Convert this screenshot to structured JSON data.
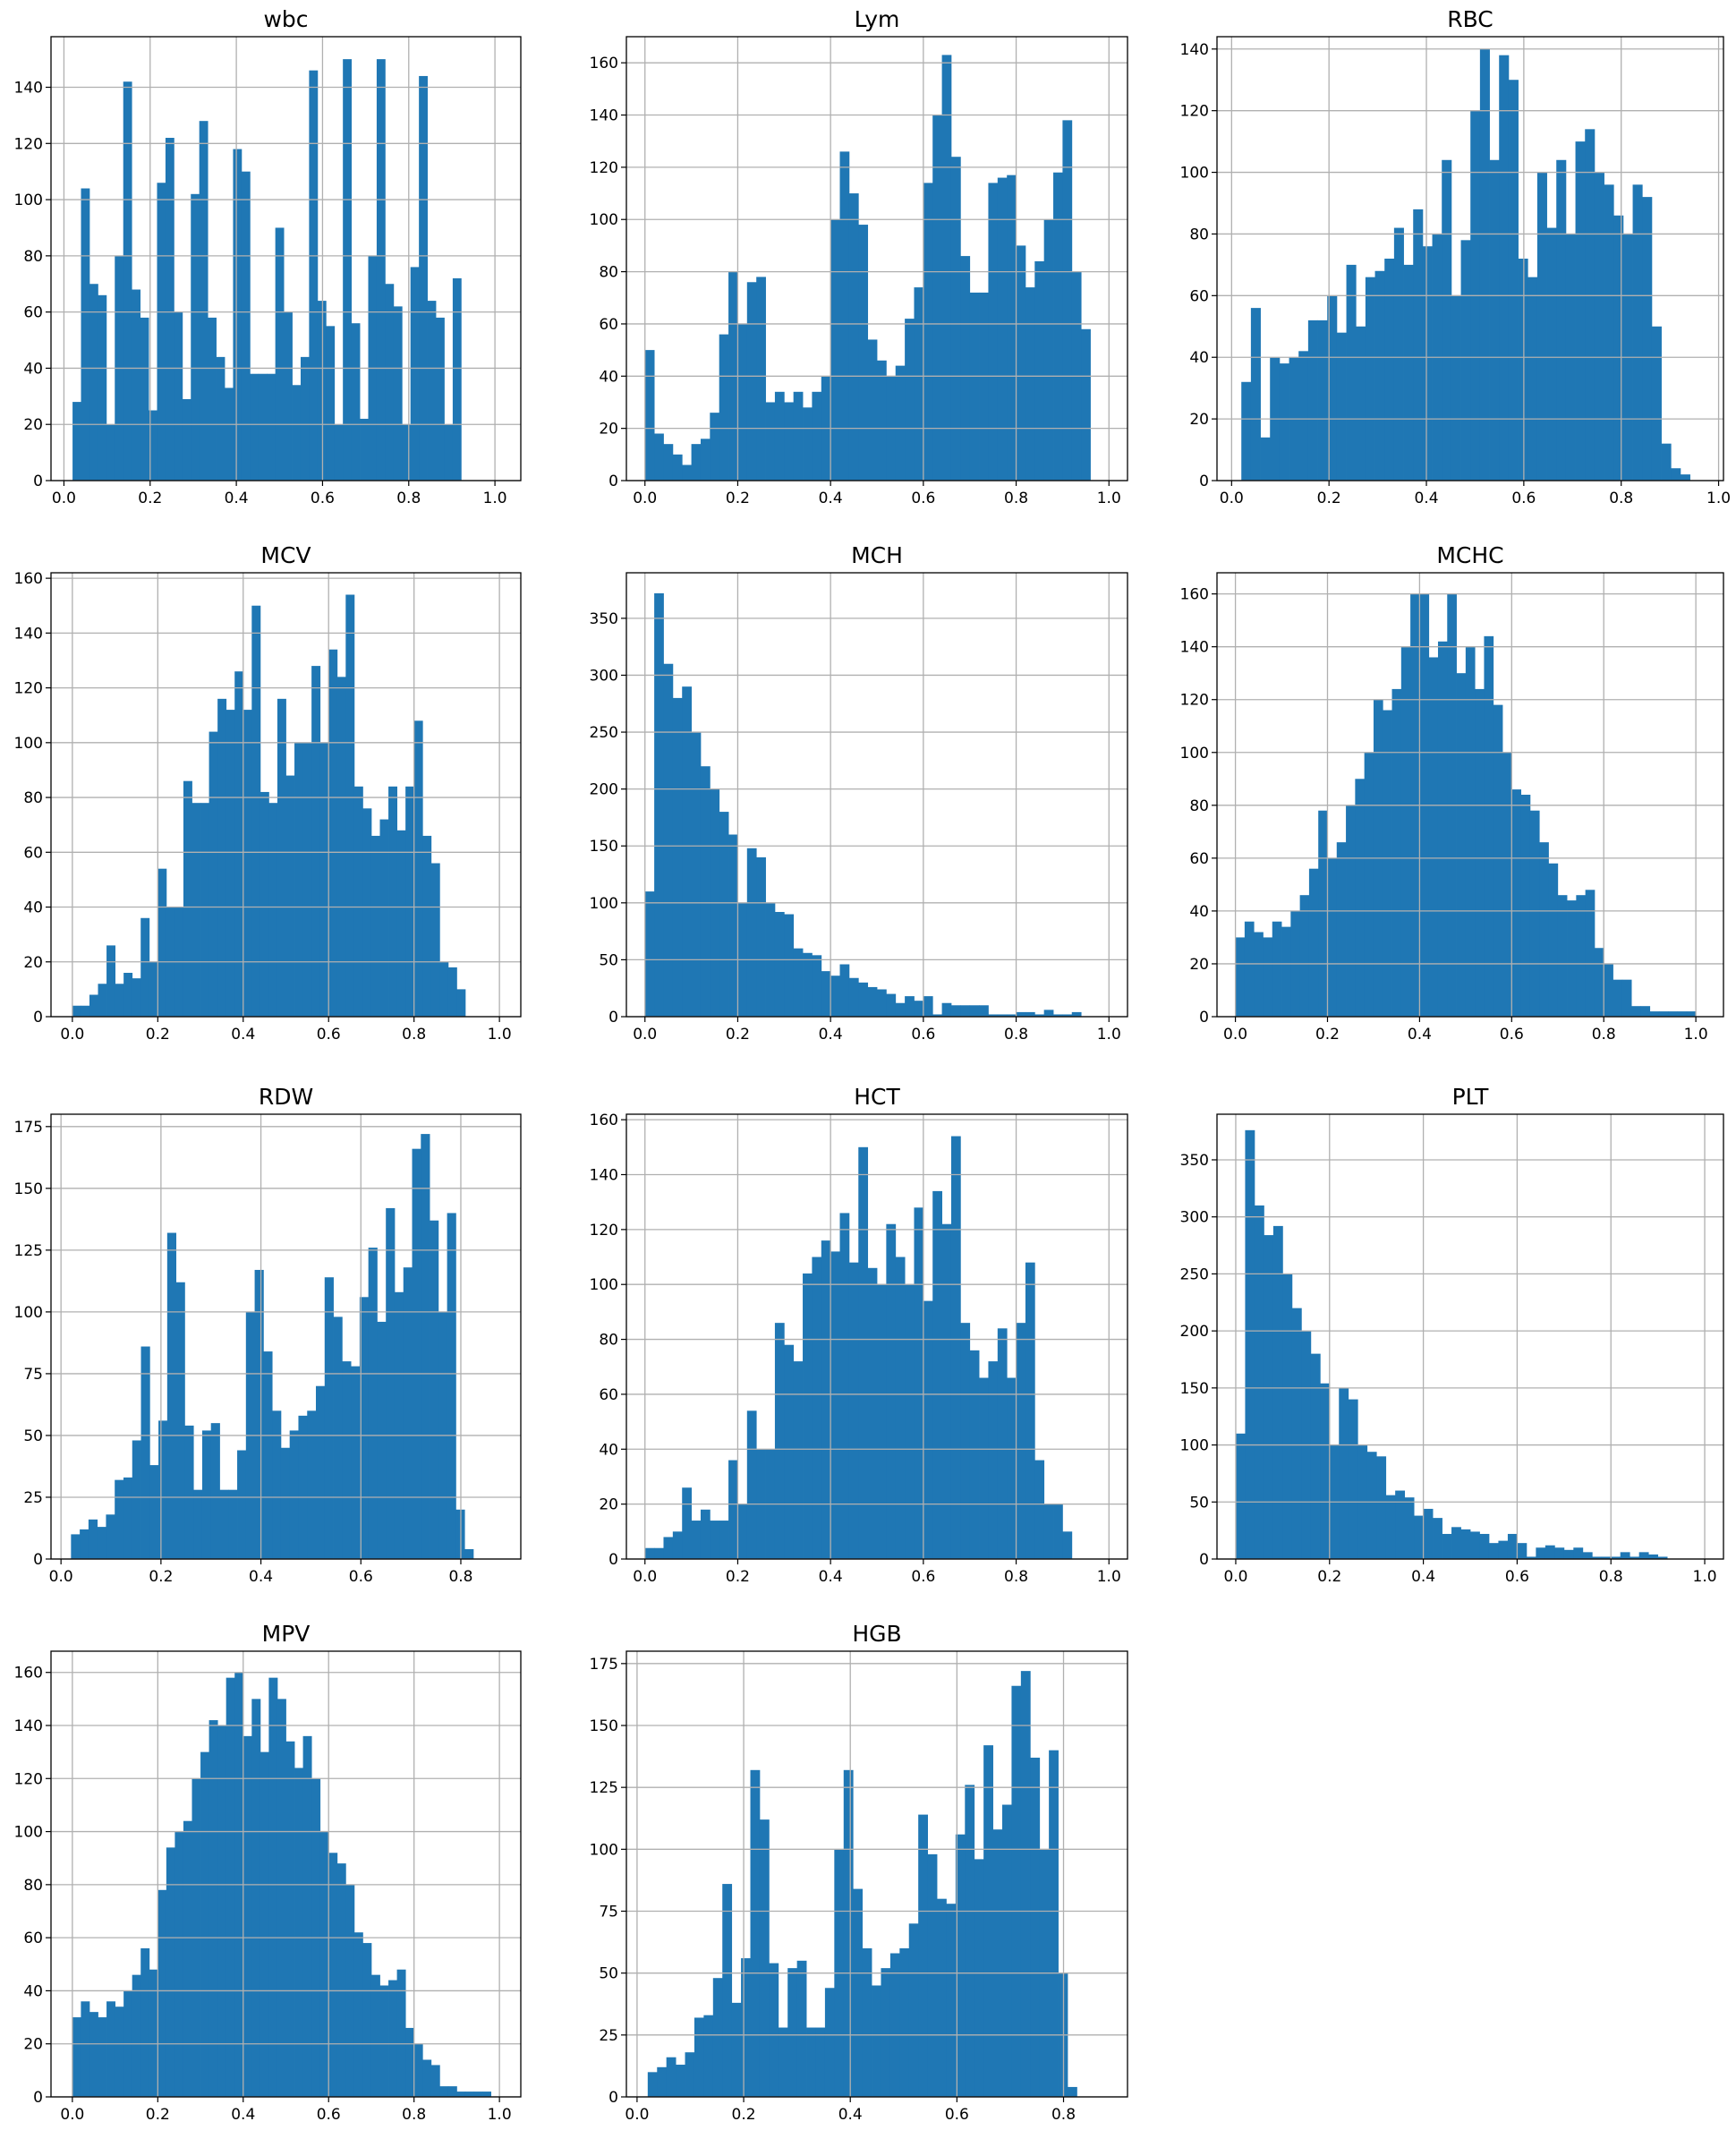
{
  "chart_data": [
    {
      "type": "histogram",
      "title": "wbc",
      "bar_color": "#1f77b4",
      "grid": true,
      "xlim": [
        -0.03,
        1.06
      ],
      "ylim": [
        0,
        158
      ],
      "xticks": [
        0.0,
        0.2,
        0.4,
        0.6,
        0.8,
        1.0
      ],
      "xtick_labels": [
        "0.0",
        "0.2",
        "0.4",
        "0.6",
        "0.8",
        "1.0"
      ],
      "yticks": [
        0,
        20,
        40,
        60,
        80,
        100,
        120,
        140
      ],
      "ytick_labels": [
        "0",
        "20",
        "40",
        "60",
        "80",
        "100",
        "120",
        "140"
      ],
      "bin_start": 0.02,
      "bin_width": 0.0196,
      "counts": [
        28,
        104,
        70,
        66,
        20,
        80,
        142,
        68,
        58,
        25,
        106,
        122,
        60,
        29,
        102,
        128,
        58,
        44,
        33,
        118,
        110,
        38,
        38,
        38,
        90,
        60,
        34,
        44,
        146,
        64,
        55,
        20,
        150,
        56,
        22,
        80,
        150,
        70,
        62,
        20,
        76,
        144,
        64,
        58,
        20,
        72
      ]
    },
    {
      "type": "histogram",
      "title": "Lym",
      "bar_color": "#1f77b4",
      "grid": true,
      "xlim": [
        -0.04,
        1.04
      ],
      "ylim": [
        0,
        170
      ],
      "xticks": [
        0.0,
        0.2,
        0.4,
        0.6,
        0.8,
        1.0
      ],
      "xtick_labels": [
        "0.0",
        "0.2",
        "0.4",
        "0.6",
        "0.8",
        "1.0"
      ],
      "yticks": [
        0,
        20,
        40,
        60,
        80,
        100,
        120,
        140,
        160
      ],
      "ytick_labels": [
        "0",
        "20",
        "40",
        "60",
        "80",
        "100",
        "120",
        "140",
        "160"
      ],
      "bin_start": 0.0,
      "bin_width": 0.02,
      "counts": [
        50,
        18,
        14,
        10,
        6,
        14,
        16,
        26,
        56,
        80,
        60,
        76,
        78,
        30,
        34,
        30,
        34,
        28,
        34,
        40,
        100,
        126,
        110,
        98,
        54,
        46,
        40,
        44,
        62,
        74,
        114,
        140,
        163,
        124,
        86,
        72,
        72,
        114,
        116,
        117,
        90,
        74,
        84,
        100,
        118,
        138,
        80,
        58
      ]
    },
    {
      "type": "histogram",
      "title": "RBC",
      "bar_color": "#1f77b4",
      "grid": true,
      "xlim": [
        -0.03,
        1.01
      ],
      "ylim": [
        0,
        144
      ],
      "xticks": [
        0.0,
        0.2,
        0.4,
        0.6,
        0.8,
        1.0
      ],
      "xtick_labels": [
        "0.0",
        "0.2",
        "0.4",
        "0.6",
        "0.8",
        "1.0"
      ],
      "yticks": [
        0,
        20,
        40,
        60,
        80,
        100,
        120,
        140
      ],
      "ytick_labels": [
        "0",
        "20",
        "40",
        "60",
        "80",
        "100",
        "120",
        "140"
      ],
      "bin_start": 0.02,
      "bin_width": 0.0196,
      "counts": [
        32,
        56,
        14,
        40,
        38,
        40,
        42,
        52,
        52,
        60,
        48,
        70,
        50,
        66,
        68,
        72,
        82,
        70,
        88,
        76,
        80,
        104,
        60,
        78,
        120,
        140,
        104,
        138,
        130,
        72,
        66,
        100,
        82,
        104,
        80,
        110,
        114,
        100,
        96,
        86,
        80,
        96,
        92,
        50,
        12,
        4,
        2
      ]
    },
    {
      "type": "histogram",
      "title": "MCV",
      "bar_color": "#1f77b4",
      "grid": true,
      "xlim": [
        -0.05,
        1.05
      ],
      "ylim": [
        0,
        162
      ],
      "xticks": [
        0.0,
        0.2,
        0.4,
        0.6,
        0.8,
        1.0
      ],
      "xtick_labels": [
        "0.0",
        "0.2",
        "0.4",
        "0.6",
        "0.8",
        "1.0"
      ],
      "yticks": [
        0,
        20,
        40,
        60,
        80,
        100,
        120,
        140,
        160
      ],
      "ytick_labels": [
        "0",
        "20",
        "40",
        "60",
        "80",
        "100",
        "120",
        "140",
        "160"
      ],
      "bin_start": 0.0,
      "bin_width": 0.02,
      "counts": [
        4,
        4,
        8,
        12,
        26,
        12,
        16,
        14,
        36,
        20,
        54,
        40,
        40,
        86,
        78,
        78,
        104,
        116,
        112,
        126,
        112,
        150,
        82,
        78,
        116,
        88,
        100,
        100,
        128,
        100,
        134,
        124,
        154,
        84,
        76,
        66,
        72,
        84,
        68,
        84,
        108,
        66,
        56,
        20,
        18,
        10
      ]
    },
    {
      "type": "histogram",
      "title": "MCH",
      "bar_color": "#1f77b4",
      "grid": true,
      "xlim": [
        -0.04,
        1.04
      ],
      "ylim": [
        0,
        390
      ],
      "xticks": [
        0.0,
        0.2,
        0.4,
        0.6,
        0.8,
        1.0
      ],
      "xtick_labels": [
        "0.0",
        "0.2",
        "0.4",
        "0.6",
        "0.8",
        "1.0"
      ],
      "yticks": [
        0,
        50,
        100,
        150,
        200,
        250,
        300,
        350
      ],
      "ytick_labels": [
        "0",
        "50",
        "100",
        "150",
        "200",
        "250",
        "300",
        "350"
      ],
      "bin_start": 0.0,
      "bin_width": 0.02,
      "counts": [
        110,
        372,
        310,
        280,
        290,
        250,
        220,
        200,
        180,
        160,
        100,
        148,
        140,
        100,
        92,
        90,
        60,
        56,
        54,
        40,
        36,
        46,
        34,
        30,
        26,
        24,
        20,
        12,
        18,
        14,
        18,
        2,
        12,
        10,
        10,
        10,
        10,
        2,
        2,
        2,
        4,
        4,
        2,
        6,
        2,
        2,
        4
      ]
    },
    {
      "type": "histogram",
      "title": "MCHC",
      "bar_color": "#1f77b4",
      "grid": true,
      "xlim": [
        -0.04,
        1.06
      ],
      "ylim": [
        0,
        168
      ],
      "xticks": [
        0.0,
        0.2,
        0.4,
        0.6,
        0.8,
        1.0
      ],
      "xtick_labels": [
        "0.0",
        "0.2",
        "0.4",
        "0.6",
        "0.8",
        "1.0"
      ],
      "yticks": [
        0,
        20,
        40,
        60,
        80,
        100,
        120,
        140,
        160
      ],
      "ytick_labels": [
        "0",
        "20",
        "40",
        "60",
        "80",
        "100",
        "120",
        "140",
        "160"
      ],
      "bin_start": 0.0,
      "bin_width": 0.02,
      "counts": [
        30,
        36,
        32,
        30,
        36,
        34,
        40,
        46,
        56,
        78,
        60,
        66,
        80,
        90,
        100,
        120,
        116,
        124,
        140,
        160,
        160,
        136,
        142,
        160,
        130,
        140,
        124,
        144,
        118,
        100,
        86,
        84,
        78,
        66,
        58,
        46,
        44,
        46,
        48,
        26,
        20,
        14,
        14,
        4,
        4,
        2,
        2,
        2,
        2,
        2
      ]
    },
    {
      "type": "histogram",
      "title": "RDW",
      "bar_color": "#1f77b4",
      "grid": true,
      "xlim": [
        -0.02,
        0.92
      ],
      "ylim": [
        0,
        180
      ],
      "xticks": [
        0.0,
        0.2,
        0.4,
        0.6,
        0.8
      ],
      "xtick_labels": [
        "0.0",
        "0.2",
        "0.4",
        "0.6",
        "0.8"
      ],
      "yticks": [
        0,
        25,
        50,
        75,
        100,
        125,
        150,
        175
      ],
      "ytick_labels": [
        "0",
        "25",
        "50",
        "75",
        "100",
        "125",
        "150",
        "175"
      ],
      "bin_start": 0.02,
      "bin_width": 0.0175,
      "counts": [
        10,
        12,
        16,
        13,
        18,
        32,
        33,
        48,
        86,
        38,
        56,
        132,
        112,
        54,
        28,
        52,
        55,
        28,
        28,
        44,
        100,
        117,
        84,
        60,
        45,
        52,
        58,
        60,
        70,
        114,
        98,
        80,
        78,
        106,
        126,
        96,
        142,
        108,
        118,
        166,
        172,
        137,
        100,
        140,
        20,
        4
      ]
    },
    {
      "type": "histogram",
      "title": "HCT",
      "bar_color": "#1f77b4",
      "grid": true,
      "xlim": [
        -0.04,
        1.04
      ],
      "ylim": [
        0,
        162
      ],
      "xticks": [
        0.0,
        0.2,
        0.4,
        0.6,
        0.8,
        1.0
      ],
      "xtick_labels": [
        "0.0",
        "0.2",
        "0.4",
        "0.6",
        "0.8",
        "1.0"
      ],
      "yticks": [
        0,
        20,
        40,
        60,
        80,
        100,
        120,
        140,
        160
      ],
      "ytick_labels": [
        "0",
        "20",
        "40",
        "60",
        "80",
        "100",
        "120",
        "140",
        "160"
      ],
      "bin_start": 0.0,
      "bin_width": 0.02,
      "counts": [
        4,
        4,
        8,
        10,
        26,
        14,
        18,
        14,
        14,
        36,
        20,
        54,
        40,
        40,
        86,
        78,
        72,
        104,
        110,
        116,
        112,
        126,
        108,
        150,
        106,
        100,
        122,
        110,
        100,
        128,
        94,
        134,
        122,
        154,
        86,
        76,
        66,
        72,
        84,
        66,
        86,
        108,
        36,
        20,
        20,
        10
      ]
    },
    {
      "type": "histogram",
      "title": "PLT",
      "bar_color": "#1f77b4",
      "grid": true,
      "xlim": [
        -0.04,
        1.04
      ],
      "ylim": [
        0,
        390
      ],
      "xticks": [
        0.0,
        0.2,
        0.4,
        0.6,
        0.8,
        1.0
      ],
      "xtick_labels": [
        "0.0",
        "0.2",
        "0.4",
        "0.6",
        "0.8",
        "1.0"
      ],
      "yticks": [
        0,
        50,
        100,
        150,
        200,
        250,
        300,
        350
      ],
      "ytick_labels": [
        "0",
        "50",
        "100",
        "150",
        "200",
        "250",
        "300",
        "350"
      ],
      "bin_start": 0.0,
      "bin_width": 0.02,
      "counts": [
        110,
        376,
        310,
        284,
        292,
        250,
        220,
        200,
        180,
        154,
        100,
        150,
        140,
        100,
        94,
        90,
        56,
        60,
        54,
        38,
        44,
        36,
        22,
        28,
        26,
        24,
        22,
        14,
        16,
        22,
        14,
        2,
        10,
        12,
        10,
        8,
        10,
        6,
        2,
        2,
        2,
        6,
        2,
        6,
        4,
        2
      ]
    },
    {
      "type": "histogram",
      "title": "MPV",
      "bar_color": "#1f77b4",
      "grid": true,
      "xlim": [
        -0.05,
        1.05
      ],
      "ylim": [
        0,
        168
      ],
      "xticks": [
        0.0,
        0.2,
        0.4,
        0.6,
        0.8,
        1.0
      ],
      "xtick_labels": [
        "0.0",
        "0.2",
        "0.4",
        "0.6",
        "0.8",
        "1.0"
      ],
      "yticks": [
        0,
        20,
        40,
        60,
        80,
        100,
        120,
        140,
        160
      ],
      "ytick_labels": [
        "0",
        "20",
        "40",
        "60",
        "80",
        "100",
        "120",
        "140",
        "160"
      ],
      "bin_start": 0.0,
      "bin_width": 0.02,
      "counts": [
        30,
        36,
        32,
        30,
        36,
        34,
        40,
        46,
        56,
        48,
        78,
        94,
        100,
        104,
        120,
        130,
        142,
        140,
        158,
        160,
        136,
        150,
        130,
        158,
        150,
        134,
        124,
        136,
        120,
        100,
        92,
        88,
        80,
        62,
        58,
        46,
        42,
        44,
        48,
        26,
        20,
        14,
        12,
        4,
        4,
        2,
        2,
        2,
        2
      ]
    },
    {
      "type": "histogram",
      "title": "HGB",
      "bar_color": "#1f77b4",
      "grid": true,
      "xlim": [
        -0.02,
        0.92
      ],
      "ylim": [
        0,
        180
      ],
      "xticks": [
        0.0,
        0.2,
        0.4,
        0.6,
        0.8
      ],
      "xtick_labels": [
        "0.0",
        "0.2",
        "0.4",
        "0.6",
        "0.8"
      ],
      "yticks": [
        0,
        25,
        50,
        75,
        100,
        125,
        150,
        175
      ],
      "ytick_labels": [
        "0",
        "25",
        "50",
        "75",
        "100",
        "125",
        "150",
        "175"
      ],
      "bin_start": 0.02,
      "bin_width": 0.0175,
      "counts": [
        10,
        12,
        16,
        13,
        18,
        32,
        33,
        48,
        86,
        38,
        56,
        132,
        112,
        54,
        28,
        52,
        55,
        28,
        28,
        44,
        100,
        132,
        84,
        60,
        45,
        52,
        58,
        60,
        70,
        114,
        98,
        80,
        78,
        106,
        126,
        96,
        142,
        108,
        118,
        166,
        172,
        137,
        100,
        140,
        50,
        4
      ]
    }
  ]
}
